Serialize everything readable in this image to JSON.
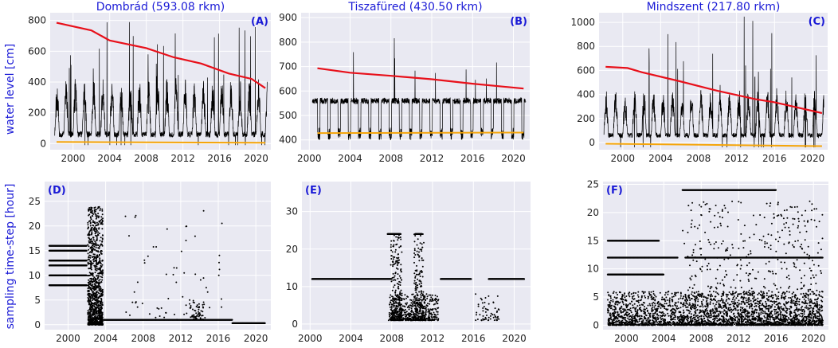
{
  "colors": {
    "panel_bg": "#e9e9f2",
    "grid": "#ffffff",
    "series": "#000000",
    "trend_high": "#e8101a",
    "trend_low": "#f5a50a",
    "label": "#1a1ad6"
  },
  "ylabels": {
    "row1": "water level  [cm]",
    "row2": "sampling time-step  [hour]"
  },
  "chart_data": [
    {
      "id": "A",
      "label": "(A)",
      "type": "line",
      "title": "Dombrád  (593.08 rkm)",
      "xlim": [
        1997.5,
        2021.6
      ],
      "ylim": [
        -40,
        850
      ],
      "xticks": [
        2000,
        2004,
        2008,
        2012,
        2016,
        2020
      ],
      "xtick_labels": [
        "2000",
        "2004",
        "2008",
        "2012",
        "2016",
        "2020"
      ],
      "yticks": [
        0,
        200,
        400,
        600,
        800
      ],
      "ytick_labels": [
        "0",
        "200",
        "400",
        "600",
        "800"
      ],
      "series": [
        {
          "name": "water level",
          "kind": "hydrograph",
          "x_range": [
            1998.0,
            2021.2
          ],
          "base": 60,
          "peak_min": 420,
          "peak_max": 830,
          "low": -10,
          "seed": 11
        },
        {
          "name": "upper trend",
          "kind": "trend",
          "x": [
            1998.2,
            2002.0,
            2004.0,
            2008.0,
            2011.0,
            2014.0,
            2017.0,
            2019.5,
            2021.0
          ],
          "y": [
            785,
            735,
            670,
            620,
            560,
            520,
            455,
            420,
            360
          ]
        },
        {
          "name": "lower trend",
          "kind": "trend_low",
          "x": [
            1998.2,
            2021.0
          ],
          "y": [
            10,
            5
          ]
        }
      ]
    },
    {
      "id": "B",
      "label": "(B)",
      "type": "line",
      "title": "Tiszafüred  (430.50 rkm)",
      "xlim": [
        1999.2,
        2021.6
      ],
      "ylim": [
        360,
        920
      ],
      "xticks": [
        2000,
        2004,
        2008,
        2012,
        2016,
        2020
      ],
      "xtick_labels": [
        "2000",
        "2004",
        "2008",
        "2012",
        "2016",
        "2020"
      ],
      "yticks": [
        400,
        500,
        600,
        700,
        800,
        900
      ],
      "ytick_labels": [
        "400",
        "500",
        "600",
        "700",
        "800",
        "900"
      ],
      "series": [
        {
          "name": "water level",
          "kind": "hydrograph_b",
          "x_range": [
            2000.3,
            2021.2
          ],
          "base": 560,
          "peak_min": 640,
          "peak_max": 880,
          "low": 380,
          "seed": 23
        },
        {
          "name": "upper trend",
          "kind": "trend",
          "x": [
            2000.8,
            2004.0,
            2008.0,
            2012.0,
            2016.0,
            2021.0
          ],
          "y": [
            693,
            675,
            662,
            648,
            630,
            610
          ]
        },
        {
          "name": "lower trend",
          "kind": "trend_low",
          "x": [
            2000.8,
            2021.0
          ],
          "y": [
            428,
            430
          ]
        }
      ]
    },
    {
      "id": "C",
      "label": "(C)",
      "type": "line",
      "title": "Mindszent  (217.80 rkm)",
      "xlim": [
        1997.5,
        2021.6
      ],
      "ylim": [
        -60,
        1080
      ],
      "xticks": [
        2000,
        2004,
        2008,
        2012,
        2016,
        2020
      ],
      "xtick_labels": [
        "2000",
        "2004",
        "2008",
        "2012",
        "2016",
        "2020"
      ],
      "yticks": [
        0,
        200,
        400,
        600,
        800,
        1000
      ],
      "ytick_labels": [
        "0",
        "200",
        "400",
        "600",
        "800",
        "1000"
      ],
      "series": [
        {
          "name": "water level",
          "kind": "hydrograph",
          "x_range": [
            1998.0,
            2021.2
          ],
          "base": 60,
          "peak_min": 450,
          "peak_max": 1050,
          "low": -40,
          "seed": 37
        },
        {
          "name": "upper trend",
          "kind": "trend",
          "x": [
            1998.2,
            2000.5,
            2002.0,
            2006.0,
            2010.0,
            2014.0,
            2016.0,
            2021.0
          ],
          "y": [
            630,
            620,
            585,
            510,
            430,
            360,
            335,
            245
          ]
        },
        {
          "name": "lower trend",
          "kind": "trend_low",
          "x": [
            1998.2,
            2021.0
          ],
          "y": [
            -10,
            -30
          ]
        }
      ]
    },
    {
      "id": "D",
      "label": "(D)",
      "type": "scatter",
      "title": "",
      "xlim": [
        1997.5,
        2021.6
      ],
      "ylim": [
        -1,
        29
      ],
      "xticks": [
        2000,
        2004,
        2008,
        2012,
        2016,
        2020
      ],
      "xtick_labels": [
        "2000",
        "2004",
        "2008",
        "2012",
        "2016",
        "2020"
      ],
      "yticks": [
        0,
        5,
        10,
        15,
        20,
        25
      ],
      "ytick_labels": [
        "0",
        "5",
        "10",
        "15",
        "20",
        "25"
      ],
      "bands": [
        {
          "x": [
            1998.0,
            2002.0
          ],
          "y": 16
        },
        {
          "x": [
            1998.0,
            2002.0
          ],
          "y": 15
        },
        {
          "x": [
            1998.0,
            2002.0
          ],
          "y": 13
        },
        {
          "x": [
            1998.0,
            2002.0
          ],
          "y": 12
        },
        {
          "x": [
            1998.0,
            2002.0
          ],
          "y": 10
        },
        {
          "x": [
            1998.0,
            2002.0
          ],
          "y": 8
        },
        {
          "x": [
            2003.8,
            2017.5
          ],
          "y": 1
        },
        {
          "x": [
            2017.5,
            2021.0
          ],
          "y": 0.3
        }
      ],
      "clusters": [
        {
          "x": [
            2002.1,
            2003.7
          ],
          "y": [
            0,
            24
          ],
          "n": 1100
        },
        {
          "x": [
            2012.8,
            2014.5
          ],
          "y": [
            1,
            5
          ],
          "n": 60
        },
        {
          "x": [
            2006.0,
            2016.5
          ],
          "y": [
            1,
            24
          ],
          "n": 70
        }
      ],
      "seed": 5
    },
    {
      "id": "E",
      "label": "(E)",
      "type": "scatter",
      "title": "",
      "xlim": [
        1999.2,
        2021.6
      ],
      "ylim": [
        -1.5,
        38
      ],
      "xticks": [
        2000,
        2004,
        2008,
        2012,
        2016,
        2020
      ],
      "xtick_labels": [
        "2000",
        "2004",
        "2008",
        "2012",
        "2016",
        "2020"
      ],
      "yticks": [
        0,
        10,
        20,
        30
      ],
      "ytick_labels": [
        "0",
        "10",
        "20",
        "30"
      ],
      "bands": [
        {
          "x": [
            2000.2,
            2008.0
          ],
          "y": 12
        },
        {
          "x": [
            2012.8,
            2015.8
          ],
          "y": 12
        },
        {
          "x": [
            2017.5,
            2021.0
          ],
          "y": 12
        },
        {
          "x": [
            2007.6,
            2008.9
          ],
          "y": 24
        },
        {
          "x": [
            2010.3,
            2011.0
          ],
          "y": 24
        }
      ],
      "clusters": [
        {
          "x": [
            2007.7,
            2012.6
          ],
          "y": [
            1,
            8
          ],
          "n": 500
        },
        {
          "x": [
            2007.9,
            2009.0
          ],
          "y": [
            1,
            24
          ],
          "n": 260
        },
        {
          "x": [
            2010.2,
            2011.2
          ],
          "y": [
            1,
            24
          ],
          "n": 200
        },
        {
          "x": [
            2016.2,
            2018.6
          ],
          "y": [
            1,
            8
          ],
          "n": 60
        }
      ],
      "seed": 9
    },
    {
      "id": "F",
      "label": "(F)",
      "type": "scatter",
      "title": "",
      "xlim": [
        1997.5,
        2021.6
      ],
      "ylim": [
        -0.8,
        25.5
      ],
      "xticks": [
        2000,
        2004,
        2008,
        2012,
        2016,
        2020
      ],
      "xtick_labels": [
        "2000",
        "2004",
        "2008",
        "2012",
        "2016",
        "2020"
      ],
      "yticks": [
        0,
        5,
        10,
        15,
        20,
        25
      ],
      "ytick_labels": [
        "0",
        "5",
        "10",
        "15",
        "20",
        "25"
      ],
      "bands": [
        {
          "x": [
            1998.0,
            2002.0
          ],
          "y": 15
        },
        {
          "x": [
            2002.0,
            2003.5
          ],
          "y": 15
        },
        {
          "x": [
            1998.0,
            2005.5
          ],
          "y": 12
        },
        {
          "x": [
            1998.0,
            2004.0
          ],
          "y": 9
        },
        {
          "x": [
            2006.3,
            2021.0
          ],
          "y": 12
        },
        {
          "x": [
            2006.0,
            2016.0
          ],
          "y": 24
        }
      ],
      "clusters": [
        {
          "x": [
            1998.0,
            2021.0
          ],
          "y": [
            0,
            6
          ],
          "n": 2600
        },
        {
          "x": [
            2006.0,
            2021.0
          ],
          "y": [
            0,
            22
          ],
          "n": 700
        }
      ],
      "seed": 17
    }
  ]
}
